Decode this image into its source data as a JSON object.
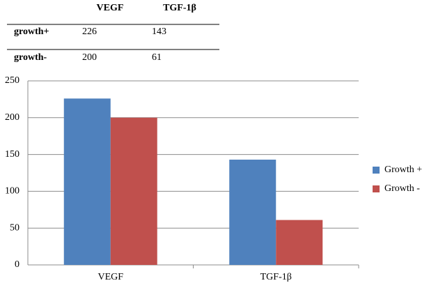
{
  "table": {
    "headers": [
      "VEGF",
      "TGF-1β"
    ],
    "rows": [
      {
        "label": "growth+",
        "values": [
          226,
          143
        ]
      },
      {
        "label": "growth-",
        "values": [
          200,
          61
        ]
      }
    ]
  },
  "chart_data": {
    "type": "bar",
    "categories": [
      "VEGF",
      "TGF-1β"
    ],
    "series": [
      {
        "name": "Growth +",
        "color": "#4f81bd",
        "values": [
          226,
          143
        ]
      },
      {
        "name": "Growth -",
        "color": "#c0504d",
        "values": [
          200,
          61
        ]
      }
    ],
    "ylim": [
      0,
      250
    ],
    "yticks": [
      0,
      50,
      100,
      150,
      200,
      250
    ],
    "grid": true,
    "legend": "right"
  }
}
